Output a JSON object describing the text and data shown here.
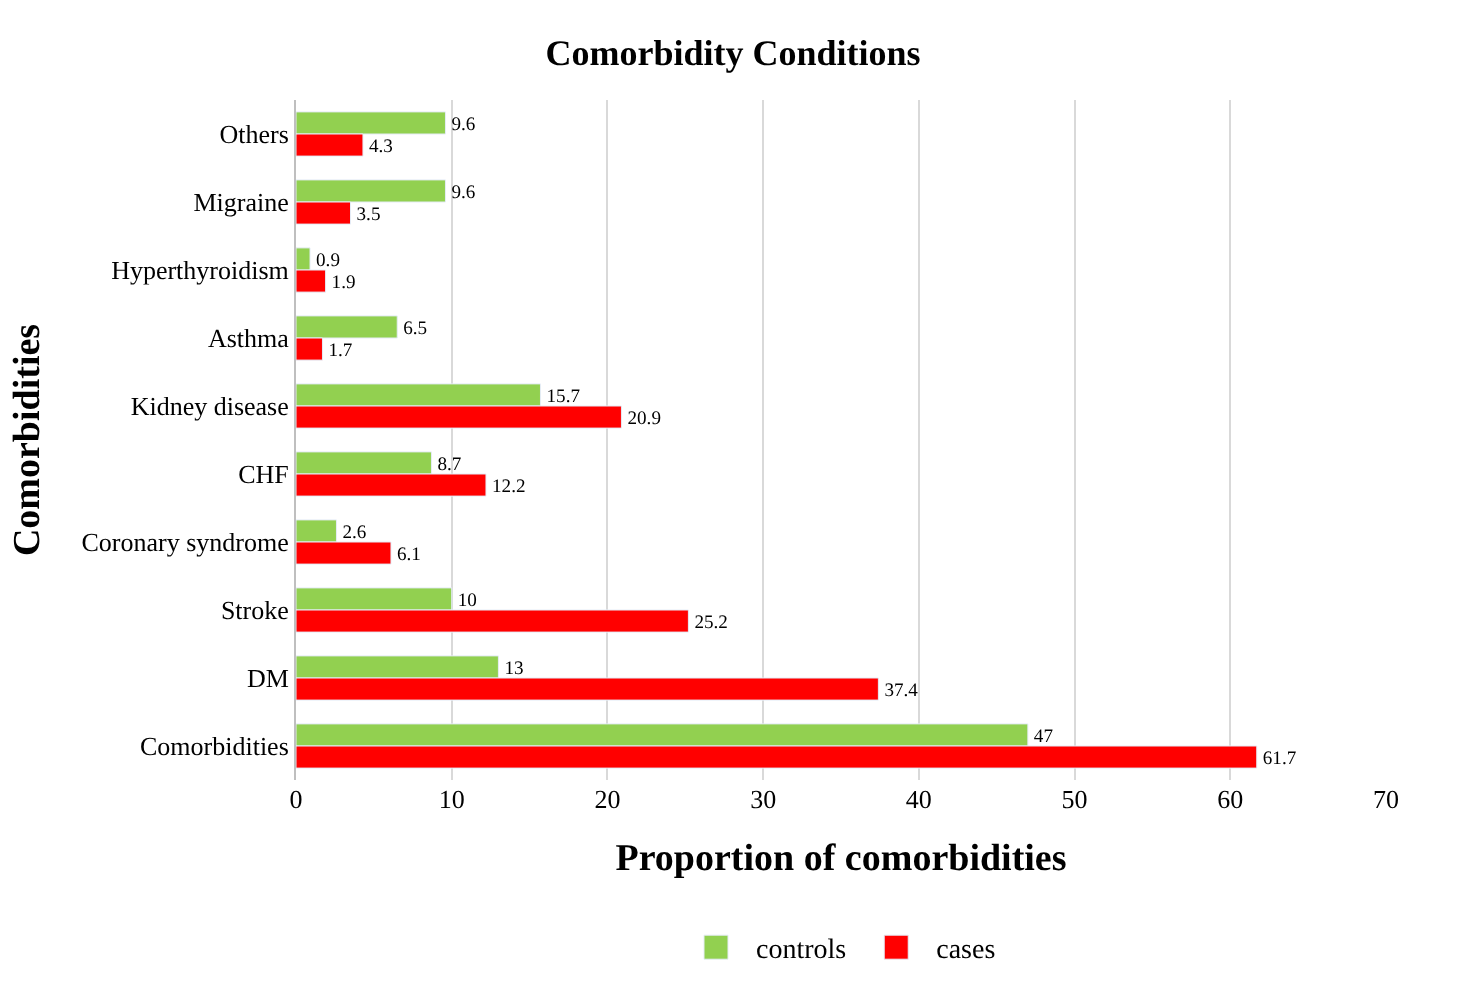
{
  "chart_data": {
    "type": "bar",
    "orientation": "horizontal",
    "title": "Comorbidity Conditions",
    "xlabel": "Proportion of comorbidities",
    "ylabel": "Comorbidities",
    "categories": [
      "Others",
      "Migraine",
      "Hyperthyroidism",
      "Asthma",
      "Kidney disease",
      "CHF",
      "Coronary syndrome",
      "Stroke",
      "DM",
      "Comorbidities"
    ],
    "series": [
      {
        "name": "controls",
        "color": "#92d050",
        "values": [
          9.6,
          9.6,
          0.9,
          6.5,
          15.7,
          8.7,
          2.6,
          10,
          13,
          47
        ]
      },
      {
        "name": "cases",
        "color": "#ff0000",
        "values": [
          4.3,
          3.5,
          1.9,
          1.7,
          20.9,
          12.2,
          6.1,
          25.2,
          37.4,
          61.7
        ]
      }
    ],
    "xlim": [
      0,
      70
    ],
    "xticks": [
      0,
      10,
      20,
      30,
      40,
      50,
      60,
      70
    ],
    "grid": "x",
    "legend": "bottom",
    "data_labels": true
  }
}
